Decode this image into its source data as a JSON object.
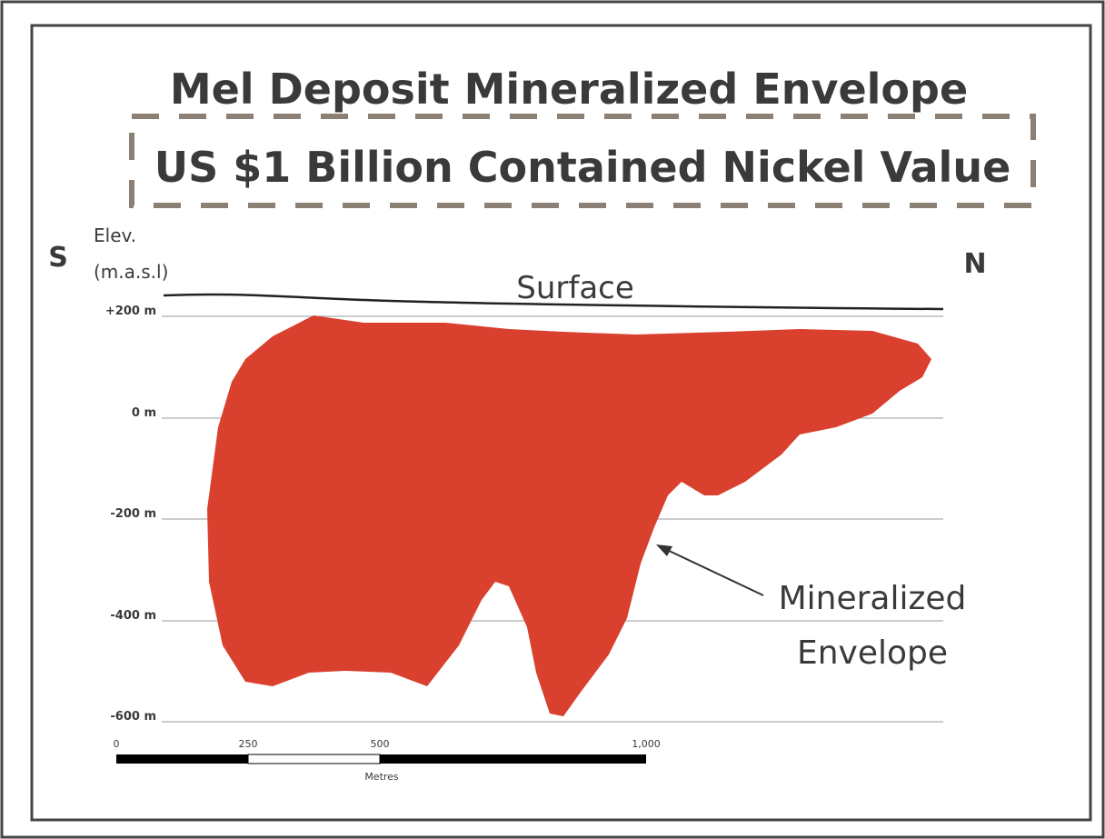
{
  "header": {
    "title": "Mel Deposit Mineralized Envelope",
    "subtitle": "US $1 Billion Contained Nickel Value"
  },
  "section": {
    "south": "S",
    "north": "N",
    "elevation_label": "Elev.",
    "elevation_unit": "(m.a.s.l)",
    "surface": "Surface",
    "elevations": [
      "+200 m",
      "0 m",
      "-200 m",
      "-400 m",
      "-600 m"
    ],
    "annotation": [
      "Mineralized",
      "Envelope"
    ]
  },
  "scale_bar": {
    "labels": [
      "0",
      "250",
      "500",
      "1,000"
    ],
    "unit": "Metres"
  }
}
